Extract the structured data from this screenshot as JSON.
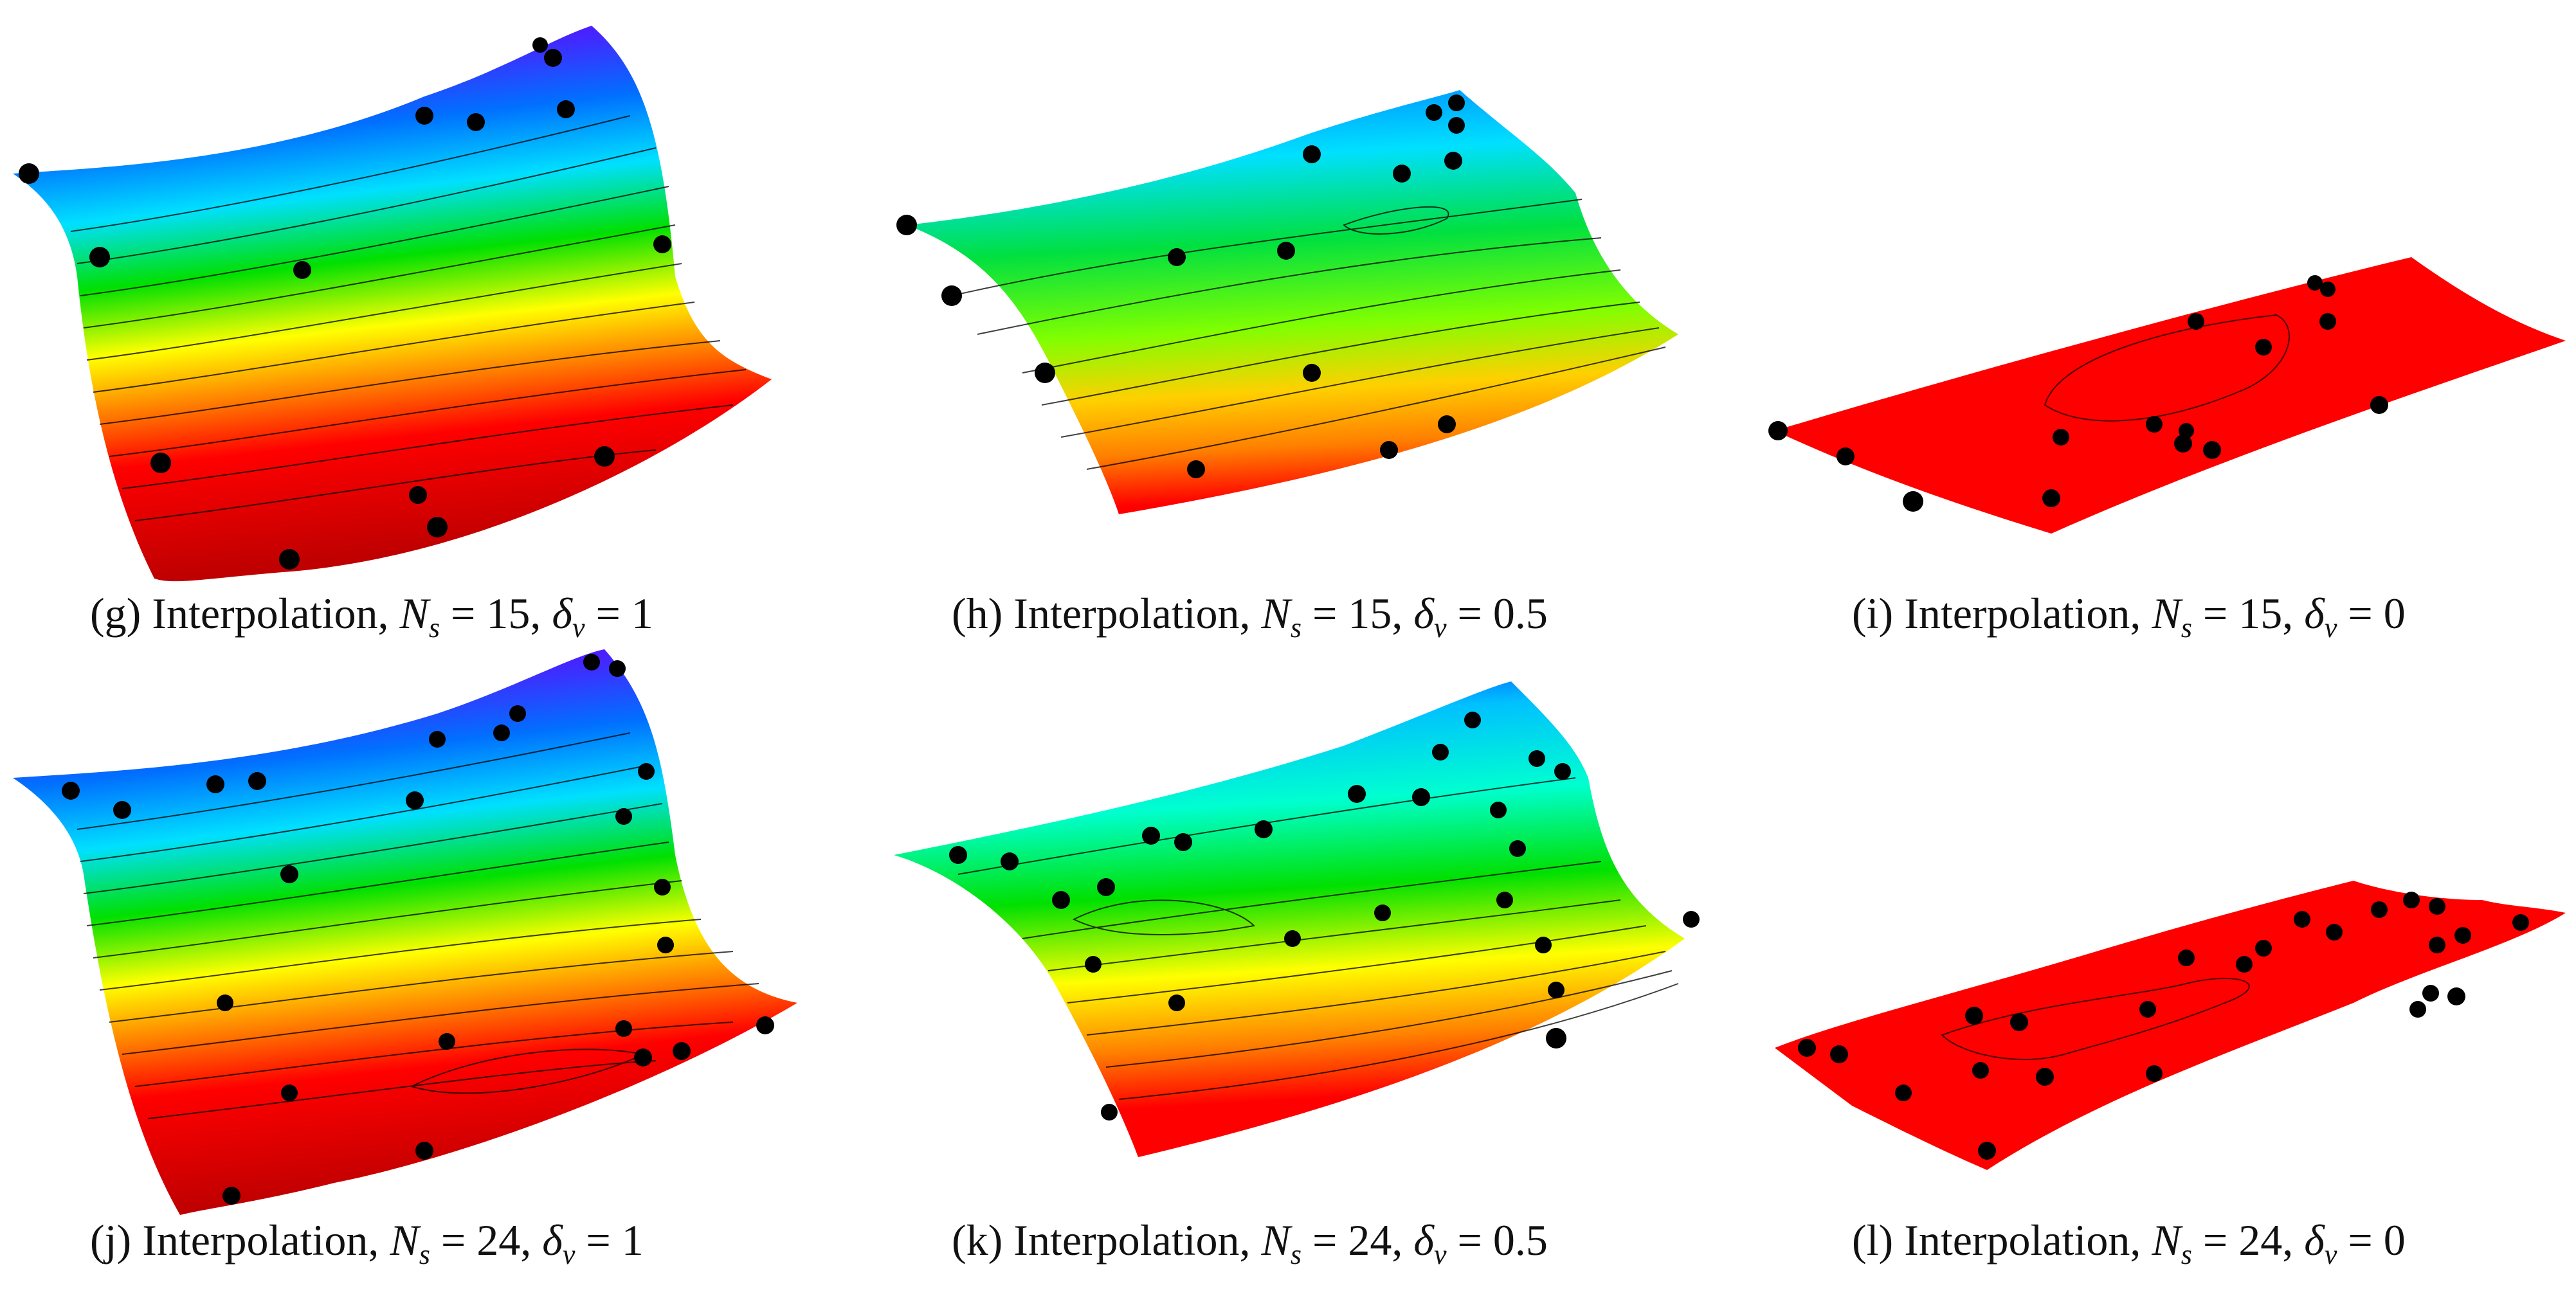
{
  "figure": {
    "panels": [
      {
        "id": "g",
        "letter": "(g)",
        "method": "Interpolation",
        "ns": "15",
        "dv": "1"
      },
      {
        "id": "h",
        "letter": "(h)",
        "method": "Interpolation",
        "ns": "15",
        "dv": "0.5"
      },
      {
        "id": "i",
        "letter": "(i)",
        "method": "Interpolation",
        "ns": "15",
        "dv": "0"
      },
      {
        "id": "j",
        "letter": "(j)",
        "method": "Interpolation",
        "ns": "24",
        "dv": "1"
      },
      {
        "id": "k",
        "letter": "(k)",
        "method": "Interpolation",
        "ns": "24",
        "dv": "0.5"
      },
      {
        "id": "l",
        "letter": "(l)",
        "method": "Interpolation",
        "ns": "24",
        "dv": "0"
      }
    ],
    "symbols": {
      "ns_base": "N",
      "ns_sub": "s",
      "dv_base": "δ",
      "dv_sub": "v",
      "eq": " = ",
      "sep": ", "
    },
    "colors": {
      "purple": "#8a00e0",
      "blue": "#0050ff",
      "cyan": "#00e0ff",
      "green": "#00e000",
      "yellow": "#ffff00",
      "orange": "#ff8000",
      "red": "#ff0000",
      "dark_red": "#b00000",
      "sample_point": "#000000",
      "contour": "#000000"
    }
  }
}
